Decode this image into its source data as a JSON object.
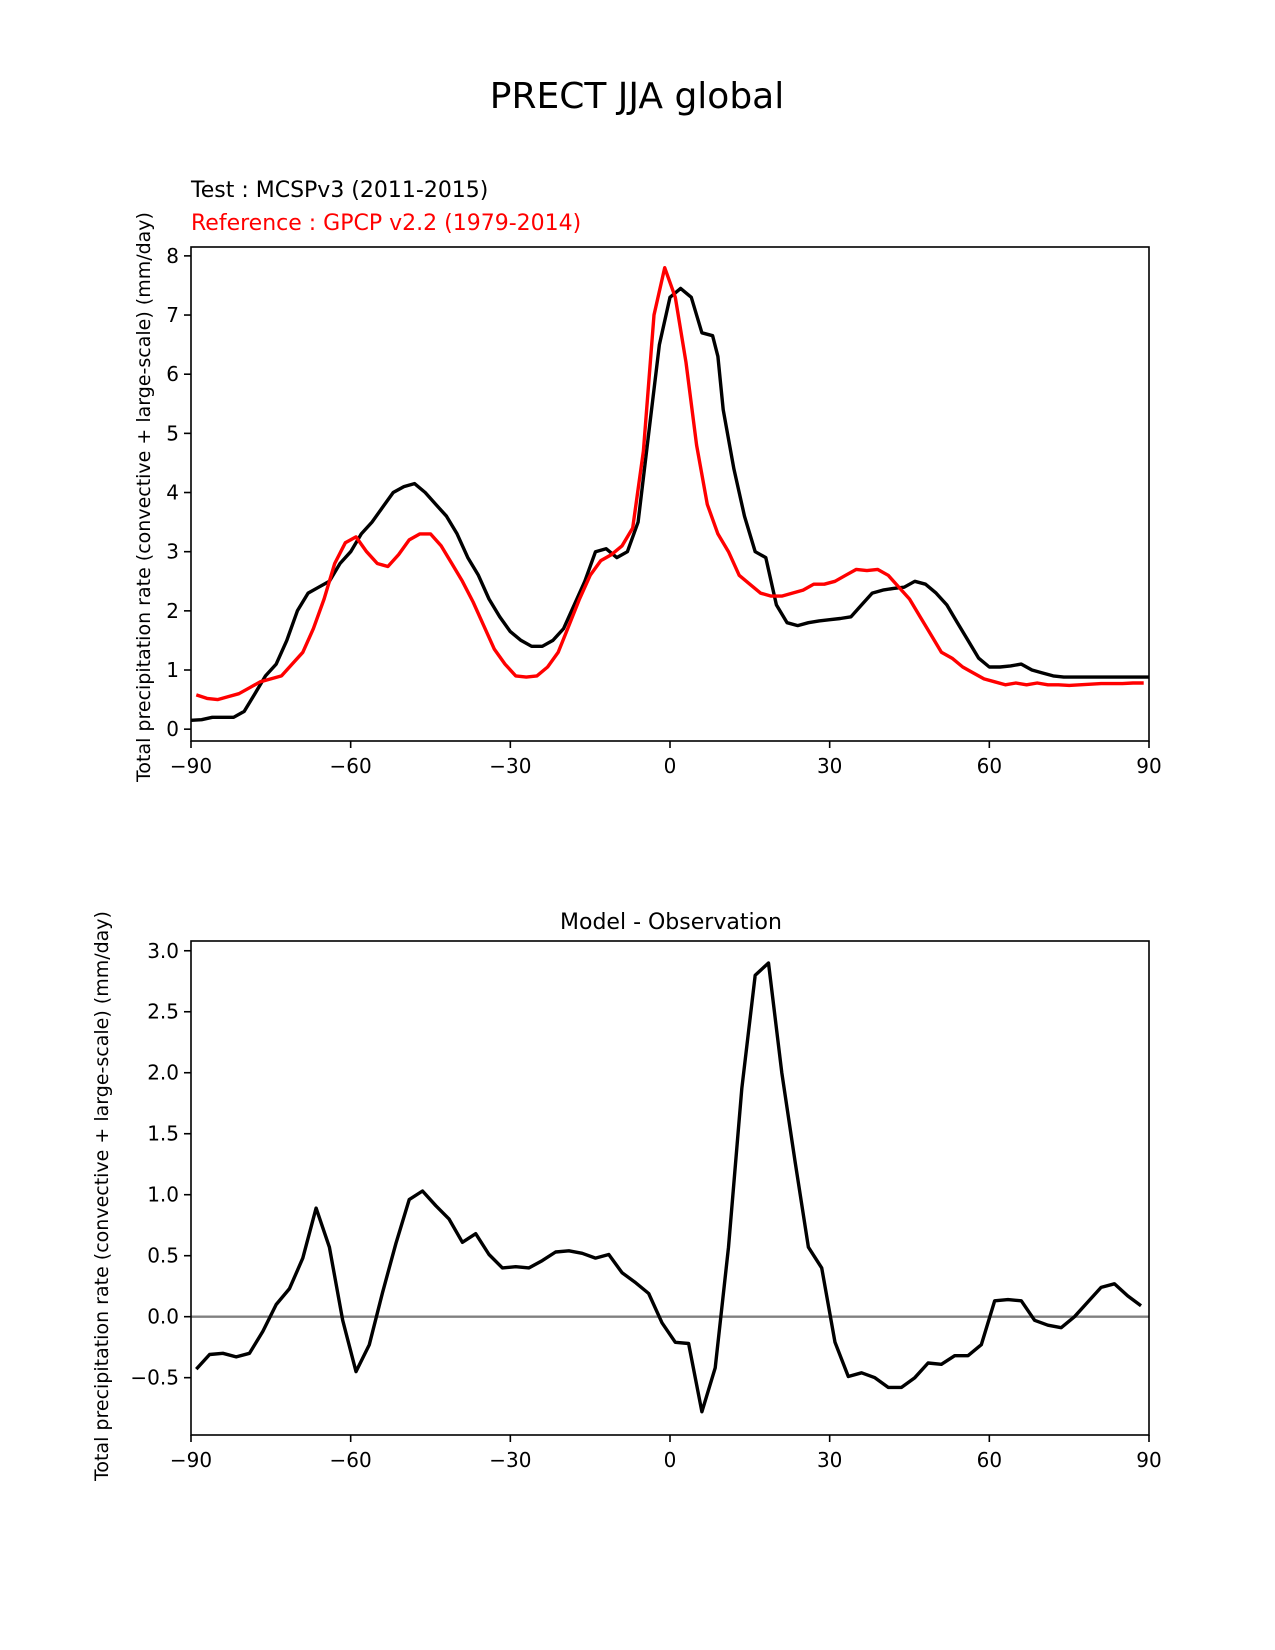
{
  "figure_title": "PRECT JJA global",
  "chart_data": [
    {
      "type": "line",
      "panel": "top",
      "title": "",
      "test_label": "Test : MCSPv3 (2011-2015)",
      "reference_label": "Reference : GPCP v2.2 (1979-2014)",
      "xlabel": "",
      "ylabel": "Total precipitation rate (convective + large-scale) (mm/day)",
      "xlim": [
        -90,
        90
      ],
      "ylim": [
        -0.2,
        8.15
      ],
      "xticks": [
        -90,
        -60,
        -30,
        0,
        30,
        60,
        90
      ],
      "xtick_labels": [
        "−90",
        "−60",
        "−30",
        "0",
        "30",
        "60",
        "90"
      ],
      "yticks": [
        0,
        1,
        2,
        3,
        4,
        5,
        6,
        7,
        8
      ],
      "ytick_labels": [
        "0",
        "1",
        "2",
        "3",
        "4",
        "5",
        "6",
        "7",
        "8"
      ],
      "grid": false,
      "colors": {
        "test": "#000000",
        "reference": "#ff0000"
      },
      "series": [
        {
          "role": "test",
          "color": "#000000",
          "x": [
            -90,
            -88,
            -86,
            -84,
            -82,
            -80,
            -78,
            -76,
            -74,
            -72,
            -70,
            -68,
            -66,
            -64,
            -62,
            -60,
            -58,
            -56,
            -54,
            -52,
            -50,
            -48,
            -46,
            -44,
            -42,
            -40,
            -38,
            -36,
            -34,
            -32,
            -30,
            -28,
            -26,
            -24,
            -22,
            -20,
            -18,
            -16,
            -14,
            -12,
            -10,
            -8,
            -6,
            -4,
            -2,
            0,
            2,
            4,
            6,
            8,
            9,
            10,
            12,
            14,
            16,
            18,
            20,
            22,
            24,
            26,
            28,
            30,
            32,
            34,
            36,
            38,
            40,
            42,
            44,
            46,
            48,
            50,
            52,
            54,
            56,
            58,
            60,
            62,
            64,
            66,
            68,
            70,
            72,
            74,
            76,
            78,
            80,
            82,
            84,
            86,
            88,
            90
          ],
          "y": [
            0.15,
            0.16,
            0.2,
            0.2,
            0.2,
            0.3,
            0.6,
            0.9,
            1.1,
            1.5,
            2.0,
            2.3,
            2.4,
            2.5,
            2.8,
            3.0,
            3.3,
            3.5,
            3.75,
            4.0,
            4.1,
            4.15,
            4.0,
            3.8,
            3.6,
            3.3,
            2.9,
            2.6,
            2.2,
            1.9,
            1.65,
            1.5,
            1.4,
            1.4,
            1.5,
            1.7,
            2.1,
            2.5,
            3.0,
            3.05,
            2.9,
            3.0,
            3.5,
            5.0,
            6.5,
            7.3,
            7.45,
            7.3,
            6.7,
            6.65,
            6.3,
            5.4,
            4.4,
            3.6,
            3.0,
            2.9,
            2.1,
            1.8,
            1.75,
            1.8,
            1.83,
            1.85,
            1.87,
            1.9,
            2.1,
            2.3,
            2.35,
            2.38,
            2.4,
            2.5,
            2.45,
            2.3,
            2.1,
            1.8,
            1.5,
            1.2,
            1.05,
            1.05,
            1.07,
            1.1,
            1.0,
            0.95,
            0.9,
            0.88,
            0.88,
            0.88,
            0.88,
            0.88,
            0.88,
            0.88,
            0.88,
            0.88
          ]
        },
        {
          "role": "reference",
          "color": "#ff0000",
          "x": [
            -89,
            -87,
            -85,
            -83,
            -81,
            -79,
            -77,
            -75,
            -73,
            -71,
            -69,
            -67,
            -65,
            -63,
            -61,
            -59,
            -57,
            -55,
            -53,
            -51,
            -49,
            -47,
            -45,
            -43,
            -41,
            -39,
            -37,
            -35,
            -33,
            -31,
            -29,
            -27,
            -25,
            -23,
            -21,
            -19,
            -17,
            -15,
            -13,
            -11,
            -9,
            -7,
            -5,
            -3,
            -1,
            1,
            3,
            5,
            7,
            9,
            11,
            13,
            15,
            17,
            19,
            21,
            23,
            25,
            27,
            29,
            31,
            33,
            35,
            37,
            39,
            41,
            43,
            45,
            47,
            49,
            51,
            53,
            55,
            57,
            59,
            61,
            63,
            65,
            67,
            69,
            71,
            73,
            75,
            77,
            79,
            81,
            83,
            85,
            87,
            89
          ],
          "y": [
            0.58,
            0.52,
            0.5,
            0.55,
            0.6,
            0.7,
            0.8,
            0.85,
            0.9,
            1.1,
            1.3,
            1.7,
            2.2,
            2.8,
            3.15,
            3.25,
            3.0,
            2.8,
            2.75,
            2.95,
            3.2,
            3.3,
            3.3,
            3.1,
            2.8,
            2.5,
            2.15,
            1.75,
            1.35,
            1.1,
            0.9,
            0.88,
            0.9,
            1.05,
            1.3,
            1.75,
            2.2,
            2.6,
            2.85,
            2.95,
            3.1,
            3.4,
            4.7,
            7.0,
            7.8,
            7.3,
            6.2,
            4.8,
            3.8,
            3.3,
            3.0,
            2.6,
            2.45,
            2.3,
            2.25,
            2.25,
            2.3,
            2.35,
            2.45,
            2.45,
            2.5,
            2.6,
            2.7,
            2.68,
            2.7,
            2.6,
            2.4,
            2.2,
            1.9,
            1.6,
            1.3,
            1.2,
            1.05,
            0.95,
            0.85,
            0.8,
            0.75,
            0.78,
            0.75,
            0.78,
            0.75,
            0.75,
            0.74,
            0.75,
            0.76,
            0.77,
            0.77,
            0.77,
            0.78,
            0.78
          ]
        }
      ]
    },
    {
      "type": "line",
      "panel": "bottom",
      "title": "Model - Observation",
      "xlabel": "",
      "ylabel": "Total precipitation rate (convective + large-scale) (mm/day)",
      "xlim": [
        -90,
        90
      ],
      "ylim": [
        -0.97,
        3.08
      ],
      "xticks": [
        -90,
        -60,
        -30,
        0,
        30,
        60,
        90
      ],
      "xtick_labels": [
        "−90",
        "−60",
        "−30",
        "0",
        "30",
        "60",
        "90"
      ],
      "yticks": [
        -0.5,
        0.0,
        0.5,
        1.0,
        1.5,
        2.0,
        2.5,
        3.0
      ],
      "ytick_labels": [
        "−0.5",
        "0.0",
        "0.5",
        "1.0",
        "1.5",
        "2.0",
        "2.5",
        "3.0"
      ],
      "grid": false,
      "zero_line": {
        "value": 0.0,
        "color": "#808080"
      },
      "series": [
        {
          "role": "difference",
          "color": "#000000",
          "x": [
            -89,
            -86.5,
            -84,
            -81.5,
            -79,
            -76.5,
            -74,
            -71.5,
            -69,
            -66.5,
            -64,
            -61.5,
            -59,
            -56.5,
            -54,
            -51.5,
            -49,
            -46.5,
            -44,
            -41.5,
            -39,
            -36.5,
            -34,
            -31.5,
            -29,
            -26.5,
            -24,
            -21.5,
            -19,
            -16.5,
            -14,
            -11.5,
            -9,
            -6.5,
            -4,
            -1.5,
            1,
            3.5,
            6,
            8.5,
            11,
            13.5,
            16,
            18.5,
            21,
            23.5,
            26,
            28.5,
            31,
            33.5,
            36,
            38.5,
            41,
            43.5,
            46,
            48.5,
            51,
            53.5,
            56,
            58.5,
            61,
            63.5,
            66,
            68.5,
            71,
            73.5,
            76,
            78.5,
            81,
            83.5,
            86,
            88.5
          ],
          "y": [
            -0.43,
            -0.31,
            -0.3,
            -0.33,
            -0.3,
            -0.12,
            0.1,
            0.23,
            0.48,
            0.89,
            0.57,
            -0.03,
            -0.45,
            -0.23,
            0.2,
            0.6,
            0.96,
            1.03,
            0.91,
            0.8,
            0.61,
            0.68,
            0.51,
            0.4,
            0.41,
            0.4,
            0.46,
            0.53,
            0.54,
            0.52,
            0.48,
            0.51,
            0.36,
            0.28,
            0.19,
            -0.05,
            -0.21,
            -0.22,
            -0.78,
            -0.42,
            0.57,
            1.87,
            2.8,
            2.9,
            2.0,
            1.27,
            0.57,
            0.4,
            -0.21,
            -0.49,
            -0.46,
            -0.5,
            -0.58,
            -0.58,
            -0.5,
            -0.38,
            -0.39,
            -0.32,
            -0.32,
            -0.23,
            0.13,
            0.14,
            0.13,
            -0.03,
            -0.07,
            -0.09,
            0.0,
            0.12,
            0.24,
            0.27,
            0.17,
            0.09
          ]
        }
      ]
    }
  ]
}
